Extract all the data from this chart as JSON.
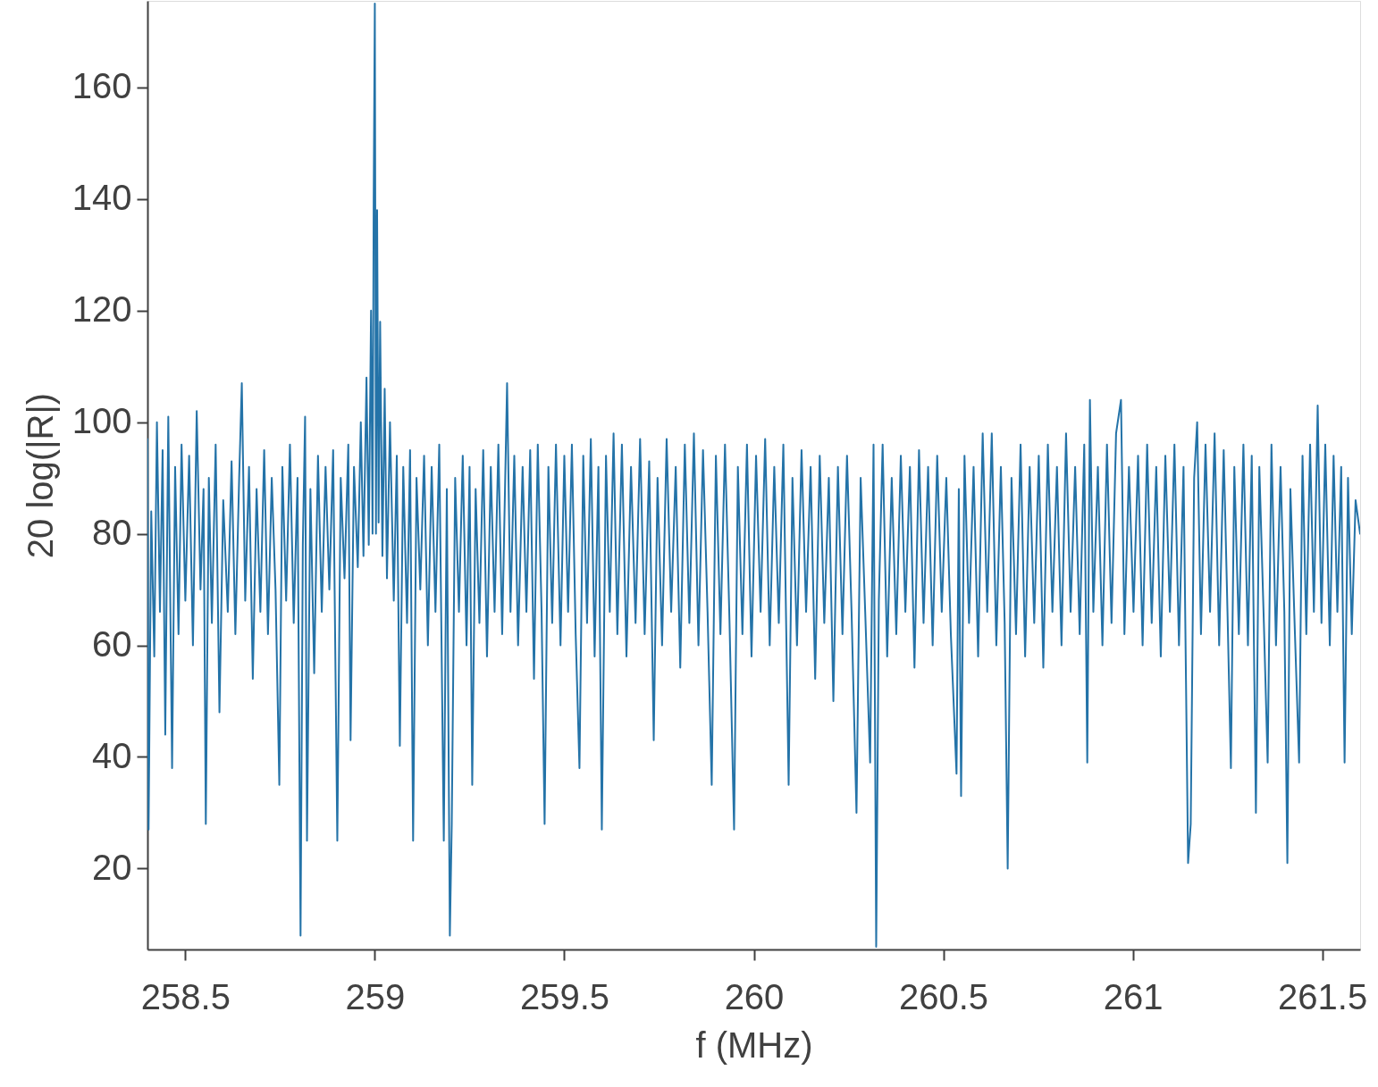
{
  "chart_data": {
    "type": "line",
    "xlabel": "f (MHz)",
    "ylabel": "20 log(|R|)",
    "xlim": [
      258.4,
      261.6
    ],
    "ylim": [
      5.5,
      175.5
    ],
    "xticks": [
      258.5,
      259,
      259.5,
      260,
      260.5,
      261,
      261.5
    ],
    "yticks": [
      20,
      40,
      60,
      80,
      100,
      120,
      140,
      160
    ],
    "grid": false,
    "marker": "none",
    "line_style": "solid",
    "x": [
      258.4,
      258.403,
      258.41,
      258.418,
      258.425,
      258.433,
      258.44,
      258.447,
      258.455,
      258.465,
      258.473,
      258.482,
      258.49,
      258.5,
      258.51,
      258.52,
      258.53,
      258.54,
      258.548,
      258.554,
      258.562,
      258.57,
      258.58,
      258.59,
      258.6,
      258.612,
      258.622,
      258.632,
      258.642,
      258.649,
      258.658,
      258.668,
      258.678,
      258.688,
      258.698,
      258.708,
      258.718,
      258.728,
      258.738,
      258.748,
      258.756,
      258.766,
      258.776,
      258.786,
      258.796,
      258.804,
      258.81,
      258.816,
      258.821,
      258.83,
      258.84,
      258.85,
      258.86,
      258.87,
      258.88,
      258.89,
      258.901,
      258.91,
      258.92,
      258.93,
      258.936,
      258.945,
      258.955,
      258.963,
      258.97,
      258.978,
      258.984,
      258.99,
      258.994,
      258.997,
      259.0,
      259.003,
      259.006,
      259.01,
      259.014,
      259.02,
      259.026,
      259.032,
      259.04,
      259.05,
      259.058,
      259.066,
      259.075,
      259.085,
      259.093,
      259.101,
      259.11,
      259.12,
      259.13,
      259.14,
      259.15,
      259.16,
      259.17,
      259.182,
      259.19,
      259.198,
      259.203,
      259.212,
      259.222,
      259.232,
      259.242,
      259.25,
      259.257,
      259.266,
      259.276,
      259.286,
      259.296,
      259.306,
      259.316,
      259.326,
      259.336,
      259.349,
      259.358,
      259.368,
      259.378,
      259.39,
      259.4,
      259.41,
      259.42,
      259.43,
      259.44,
      259.448,
      259.458,
      259.468,
      259.478,
      259.49,
      259.5,
      259.51,
      259.52,
      259.53,
      259.54,
      259.55,
      259.56,
      259.57,
      259.58,
      259.59,
      259.599,
      259.61,
      259.62,
      259.63,
      259.64,
      259.652,
      259.664,
      259.676,
      259.688,
      259.7,
      259.712,
      259.724,
      259.736,
      259.746,
      259.758,
      259.77,
      259.782,
      259.794,
      259.806,
      259.818,
      259.83,
      259.842,
      259.854,
      259.866,
      259.878,
      259.889,
      259.9,
      259.912,
      259.924,
      259.936,
      259.948,
      259.958,
      259.97,
      259.982,
      259.994,
      260.006,
      260.018,
      260.03,
      260.042,
      260.054,
      260.066,
      260.078,
      260.092,
      260.102,
      260.114,
      260.126,
      260.138,
      260.15,
      260.162,
      260.174,
      260.186,
      260.198,
      260.21,
      260.222,
      260.234,
      260.246,
      260.258,
      260.271,
      260.282,
      260.294,
      260.307,
      260.316,
      260.323,
      260.33,
      260.34,
      260.352,
      260.364,
      260.376,
      260.388,
      260.4,
      260.412,
      260.424,
      260.436,
      260.448,
      260.46,
      260.472,
      260.484,
      260.496,
      260.508,
      260.52,
      260.535,
      260.541,
      260.547,
      260.556,
      260.568,
      260.58,
      260.592,
      260.604,
      260.616,
      260.628,
      260.64,
      260.652,
      260.662,
      260.67,
      260.68,
      260.692,
      260.704,
      260.716,
      260.728,
      260.74,
      260.752,
      260.764,
      260.776,
      260.788,
      260.8,
      260.812,
      260.824,
      260.836,
      260.848,
      260.86,
      260.872,
      260.88,
      260.887,
      260.896,
      260.908,
      260.92,
      260.932,
      260.944,
      260.956,
      260.969,
      260.978,
      260.99,
      261.002,
      261.014,
      261.026,
      261.038,
      261.05,
      261.062,
      261.074,
      261.086,
      261.098,
      261.11,
      261.122,
      261.134,
      261.144,
      261.146,
      261.153,
      261.162,
      261.17,
      261.18,
      261.192,
      261.204,
      261.216,
      261.228,
      261.24,
      261.25,
      261.259,
      261.268,
      261.28,
      261.292,
      261.304,
      261.314,
      261.325,
      261.334,
      261.346,
      261.356,
      261.366,
      261.378,
      261.39,
      261.4,
      261.408,
      261.416,
      261.428,
      261.439,
      261.448,
      261.458,
      261.468,
      261.478,
      261.488,
      261.498,
      261.508,
      261.52,
      261.53,
      261.54,
      261.55,
      261.559,
      261.568,
      261.578,
      261.588,
      261.6
    ],
    "series": [
      {
        "color": "#2473a8",
        "values": [
          97,
          27,
          84,
          58,
          100,
          66,
          95,
          44,
          101,
          38,
          92,
          62,
          96,
          68,
          94,
          60,
          102,
          70,
          88,
          28,
          90,
          64,
          96,
          48,
          86,
          66,
          93,
          62,
          90,
          107,
          68,
          92,
          54,
          88,
          66,
          95,
          62,
          90,
          70,
          35,
          92,
          68,
          96,
          64,
          90,
          8,
          78,
          101,
          25,
          88,
          55,
          94,
          66,
          92,
          70,
          95,
          25,
          90,
          72,
          96,
          43,
          92,
          74,
          100,
          76,
          108,
          78,
          120,
          80,
          140,
          175,
          80,
          138,
          82,
          118,
          76,
          106,
          72,
          100,
          68,
          94,
          42,
          92,
          64,
          95,
          25,
          90,
          70,
          94,
          60,
          92,
          66,
          96,
          25,
          88,
          8,
          28,
          90,
          66,
          94,
          60,
          92,
          35,
          88,
          64,
          95,
          58,
          92,
          66,
          96,
          62,
          107,
          66,
          94,
          60,
          92,
          66,
          95,
          54,
          96,
          66,
          28,
          92,
          64,
          96,
          60,
          94,
          66,
          96,
          62,
          38,
          94,
          64,
          97,
          58,
          92,
          27,
          94,
          66,
          98,
          62,
          96,
          58,
          92,
          64,
          97,
          62,
          93,
          43,
          90,
          60,
          97,
          66,
          92,
          56,
          96,
          64,
          98,
          60,
          95,
          66,
          35,
          94,
          62,
          96,
          64,
          27,
          92,
          62,
          96,
          58,
          94,
          66,
          97,
          60,
          92,
          64,
          96,
          35,
          90,
          60,
          95,
          66,
          92,
          54,
          94,
          64,
          90,
          50,
          92,
          62,
          94,
          66,
          30,
          90,
          66,
          39,
          96,
          6,
          68,
          96,
          58,
          90,
          62,
          94,
          66,
          92,
          56,
          95,
          64,
          92,
          60,
          94,
          66,
          90,
          62,
          37,
          88,
          33,
          94,
          64,
          92,
          58,
          98,
          66,
          98,
          60,
          92,
          64,
          20,
          90,
          62,
          96,
          58,
          92,
          64,
          94,
          56,
          96,
          66,
          92,
          60,
          98,
          66,
          92,
          62,
          96,
          39,
          104,
          66,
          92,
          60,
          96,
          64,
          98,
          104,
          62,
          92,
          66,
          94,
          60,
          96,
          64,
          92,
          58,
          94,
          66,
          96,
          60,
          92,
          33,
          21,
          28,
          90,
          100,
          62,
          96,
          66,
          98,
          60,
          95,
          66,
          38,
          92,
          62,
          96,
          60,
          94,
          30,
          92,
          64,
          39,
          96,
          60,
          92,
          66,
          21,
          88,
          62,
          39,
          94,
          62,
          96,
          66,
          103,
          64,
          96,
          60,
          94,
          66,
          92,
          39,
          90,
          62,
          86,
          80
        ]
      }
    ]
  }
}
